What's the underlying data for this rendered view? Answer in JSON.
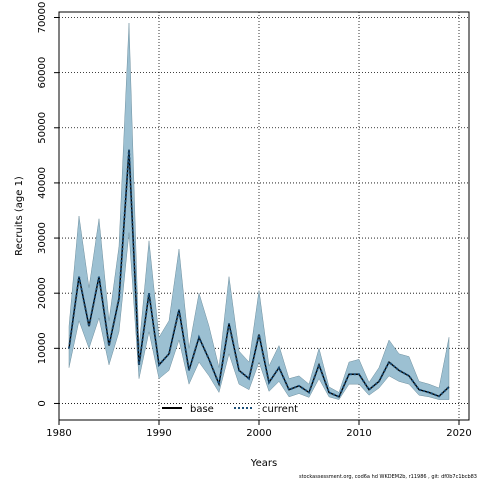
{
  "chart_data": {
    "type": "area",
    "xlabel": "Years",
    "ylabel": "Recruits (age 1)",
    "xlim": [
      1980,
      2021
    ],
    "ylim": [
      -3000,
      71000
    ],
    "x_ticks": [
      1980,
      1990,
      2000,
      2010,
      2020
    ],
    "y_ticks": [
      0,
      10000,
      20000,
      30000,
      40000,
      50000,
      60000,
      70000
    ],
    "grid": "dotted",
    "legend": {
      "placement": "bottom-center",
      "entries": [
        {
          "label": "base",
          "style": "solid",
          "color": "#000000"
        },
        {
          "label": "current",
          "style": "dotted",
          "color": "#1a4e78"
        }
      ]
    },
    "band_color": "#9cc0d2",
    "band_edge_color": "#6e8f9e",
    "years": [
      1981,
      1982,
      1983,
      1984,
      1985,
      1986,
      1987,
      1988,
      1989,
      1990,
      1991,
      1992,
      1993,
      1994,
      1995,
      1996,
      1997,
      1998,
      1999,
      2000,
      2001,
      2002,
      2003,
      2004,
      2005,
      2006,
      2007,
      2008,
      2009,
      2010,
      2011,
      2012,
      2013,
      2014,
      2015,
      2016,
      2017,
      2018,
      2019
    ],
    "series": [
      {
        "name": "base",
        "values": [
          10000,
          23000,
          14000,
          23000,
          10500,
          19000,
          46000,
          7000,
          20000,
          7000,
          9000,
          17000,
          6000,
          12000,
          8000,
          3500,
          14500,
          6000,
          4500,
          12500,
          3800,
          6500,
          2500,
          3200,
          2000,
          7000,
          2000,
          1200,
          5300,
          5300,
          2500,
          4000,
          7500,
          6000,
          5000,
          2500,
          2000,
          1300,
          3000
        ]
      },
      {
        "name": "current",
        "values": [
          10000,
          23000,
          14000,
          23000,
          10500,
          19000,
          46000,
          7000,
          20000,
          7000,
          9000,
          17000,
          6000,
          12000,
          8000,
          3500,
          14500,
          6000,
          4500,
          12500,
          3800,
          6500,
          2500,
          3200,
          2000,
          7000,
          2000,
          1200,
          5300,
          5300,
          2500,
          4000,
          7500,
          6000,
          5000,
          2500,
          2000,
          1300,
          3000
        ]
      }
    ],
    "interval_upper": [
      14000,
      34000,
      21000,
      33500,
      15000,
      28500,
      69000,
      10000,
      29500,
      12000,
      15000,
      28000,
      10000,
      20000,
      14000,
      6500,
      23000,
      9500,
      7500,
      20500,
      6800,
      10500,
      4500,
      5000,
      3500,
      10000,
      3000,
      2000,
      7500,
      8000,
      3800,
      6500,
      11500,
      9000,
      8500,
      4000,
      3500,
      2800,
      12000
    ],
    "interval_lower": [
      6500,
      15000,
      10000,
      15500,
      7000,
      13000,
      31000,
      4500,
      13000,
      4500,
      6000,
      11500,
      3500,
      7500,
      5000,
      2000,
      9000,
      3500,
      2500,
      7500,
      2200,
      4000,
      1200,
      1800,
      1100,
      4500,
      1200,
      700,
      3500,
      3500,
      1500,
      2800,
      5000,
      4000,
      3500,
      1500,
      1200,
      700,
      700
    ],
    "footer": "stockassessment.org,  cod6a  hd  WKDEM2b,  r11986 ,  git:  df0b7c1bcb83"
  }
}
